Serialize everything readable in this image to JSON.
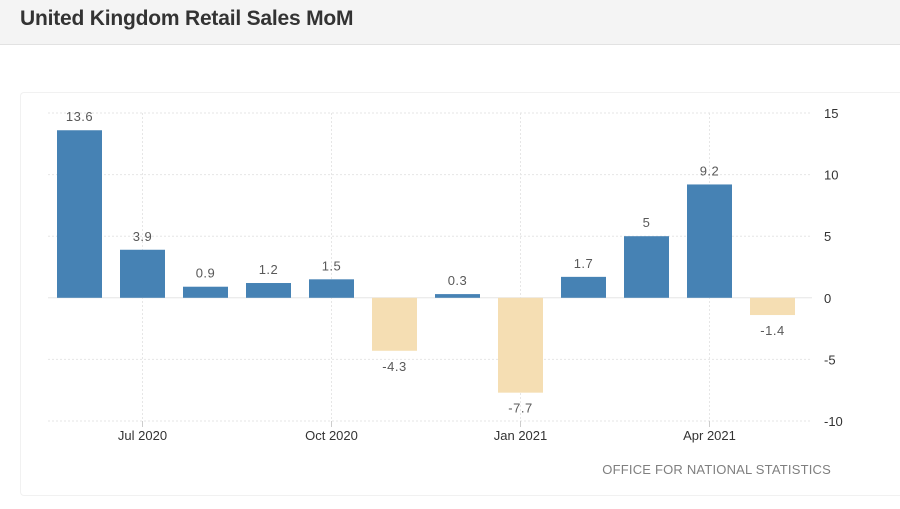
{
  "page": {
    "title": "United Kingdom Retail Sales MoM",
    "source": "OFFICE FOR NATIONAL STATISTICS"
  },
  "chart_data": {
    "type": "bar",
    "title": "United Kingdom Retail Sales MoM",
    "xlabel": "",
    "ylabel": "",
    "categories": [
      "Jun 2020",
      "Jul 2020",
      "Aug 2020",
      "Sep 2020",
      "Oct 2020",
      "Nov 2020",
      "Dec 2020",
      "Jan 2021",
      "Feb 2021",
      "Mar 2021",
      "Apr 2021",
      "May 2021"
    ],
    "values": [
      13.6,
      3.9,
      0.9,
      1.2,
      1.5,
      -4.3,
      0.3,
      -7.7,
      1.7,
      5,
      9.2,
      -1.4
    ],
    "value_labels": [
      "13.6",
      "3.9",
      "0.9",
      "1.2",
      "1.5",
      "-4.3",
      "0.3",
      "-7.7",
      "1.7",
      "5",
      "9.2",
      "-1.4"
    ],
    "x_tick_labels": [
      "Jul 2020",
      "Oct 2020",
      "Jan 2021",
      "Apr 2021"
    ],
    "x_tick_categories": [
      "Jul 2020",
      "Oct 2020",
      "Jan 2021",
      "Apr 2021"
    ],
    "y_tick_labels": [
      "15",
      "10",
      "5",
      "0",
      "-5",
      "-10"
    ],
    "y_tick_values": [
      15,
      10,
      5,
      0,
      -5,
      -10
    ],
    "ylim": [
      -10,
      15
    ],
    "grid": true,
    "y_axis_side": "right",
    "colors": {
      "positive": "#4682b4",
      "negative": "#f5deb3",
      "grid": "#e6e6e6",
      "label": "#595959"
    }
  }
}
